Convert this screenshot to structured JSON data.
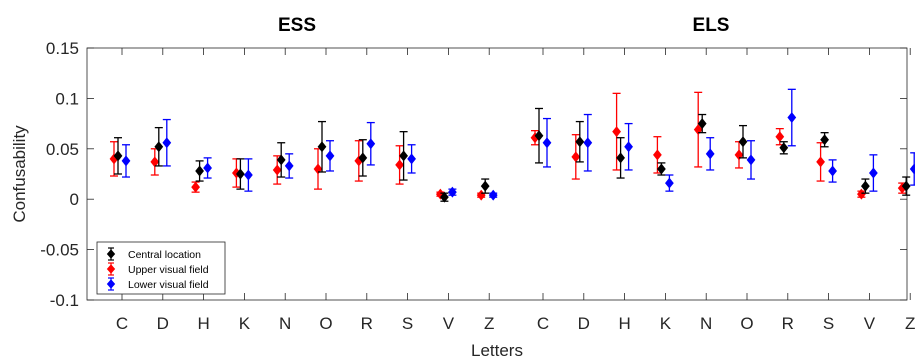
{
  "chart_data": {
    "type": "scatter",
    "titles": [
      "ESS",
      "ELS"
    ],
    "xlabel": "Letters",
    "ylabel": "Confusability",
    "ylim": [
      -0.1,
      0.15
    ],
    "yticks": [
      "-0.1",
      "-0.05",
      "0",
      "0.05",
      "0.1",
      "0.15"
    ],
    "categories": [
      "C",
      "D",
      "H",
      "K",
      "N",
      "O",
      "R",
      "S",
      "V",
      "Z"
    ],
    "grid": false,
    "legend_position": "bottom-left",
    "legend": [
      "Central location",
      "Upper visual field",
      "Lower visual field"
    ],
    "series": [
      {
        "name": "Central location",
        "color": "#000000",
        "ESS": {
          "values": [
            0.043,
            0.052,
            0.028,
            0.025,
            0.039,
            0.052,
            0.041,
            0.043,
            0.002,
            0.013
          ],
          "errors": [
            0.018,
            0.019,
            0.01,
            0.015,
            0.017,
            0.025,
            0.018,
            0.024,
            0.004,
            0.007
          ]
        },
        "ELS": {
          "values": [
            0.063,
            0.057,
            0.041,
            0.03,
            0.075,
            0.057,
            0.051,
            0.059,
            0.013,
            0.013
          ],
          "errors": [
            0.027,
            0.02,
            0.02,
            0.006,
            0.009,
            0.016,
            0.006,
            0.007,
            0.007,
            0.009
          ]
        }
      },
      {
        "name": "Upper visual field",
        "color": "#ff0000",
        "ESS": {
          "values": [
            0.04,
            0.037,
            0.012,
            0.026,
            0.029,
            0.03,
            0.038,
            0.034,
            0.005,
            0.004
          ],
          "errors": [
            0.017,
            0.013,
            0.005,
            0.014,
            0.014,
            0.02,
            0.02,
            0.019,
            0.002,
            0.002
          ]
        },
        "ELS": {
          "values": [
            0.061,
            0.042,
            0.067,
            0.044,
            0.069,
            0.044,
            0.062,
            0.037,
            0.005,
            0.011
          ],
          "errors": [
            0.007,
            0.022,
            0.038,
            0.018,
            0.037,
            0.013,
            0.008,
            0.019,
            0.003,
            0.005
          ]
        }
      },
      {
        "name": "Lower visual field",
        "color": "#0000ff",
        "ESS": {
          "values": [
            0.038,
            0.056,
            0.031,
            0.024,
            0.033,
            0.043,
            0.055,
            0.04,
            0.007,
            0.004
          ],
          "errors": [
            0.016,
            0.023,
            0.01,
            0.016,
            0.012,
            0.015,
            0.021,
            0.014,
            0.003,
            0.002
          ]
        },
        "ELS": {
          "values": [
            0.056,
            0.056,
            0.052,
            0.016,
            0.045,
            0.039,
            0.081,
            0.028,
            0.026,
            0.03
          ],
          "errors": [
            0.024,
            0.028,
            0.023,
            0.008,
            0.016,
            0.019,
            0.028,
            0.011,
            0.018,
            0.016
          ]
        }
      }
    ]
  }
}
